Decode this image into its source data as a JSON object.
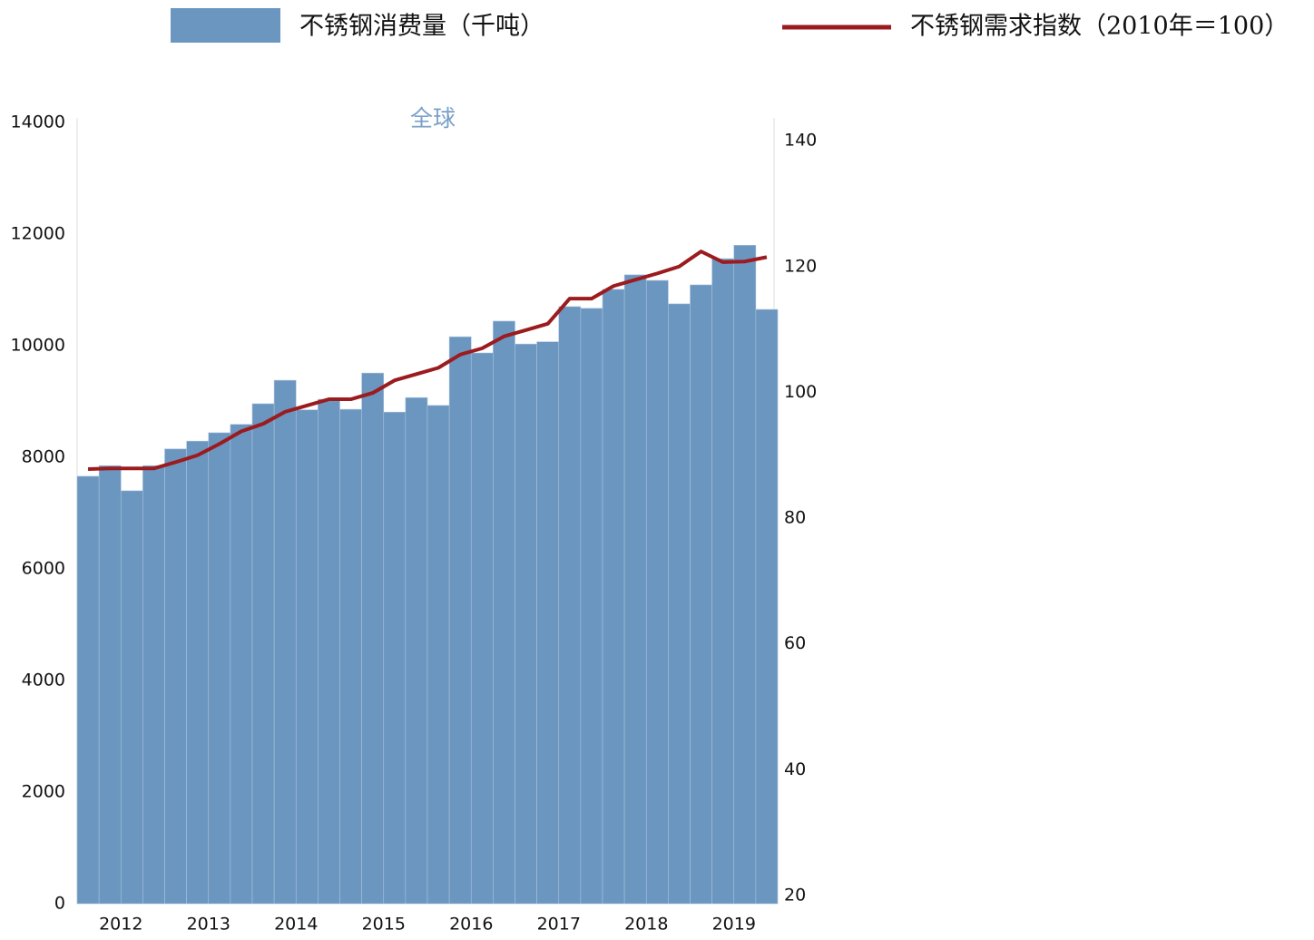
{
  "chart_data": {
    "type": "bar-line",
    "title": "全球",
    "categories": [
      null,
      null,
      "2012",
      null,
      null,
      null,
      "2013",
      null,
      null,
      null,
      "2014",
      null,
      null,
      null,
      "2015",
      null,
      null,
      null,
      "2016",
      null,
      null,
      null,
      "2017",
      null,
      null,
      null,
      "2018",
      null,
      null,
      null,
      "2019",
      null
    ],
    "series": [
      {
        "name": "不锈钢消费量（千吨）",
        "type": "bar",
        "color": "#6b96c0",
        "values": [
          7660,
          7850,
          7400,
          7850,
          8150,
          8290,
          8440,
          8590,
          8960,
          9380,
          8850,
          9040,
          8860,
          9510,
          8810,
          9070,
          8930,
          10160,
          9870,
          10440,
          10030,
          10070,
          10700,
          10670,
          11010,
          11270,
          11170,
          10750,
          11090,
          11560,
          11800,
          10650
        ]
      },
      {
        "name": "不锈钢需求指数（2010年＝100）",
        "type": "line",
        "axis": "y2",
        "color": "#9b1b1e",
        "values": [
          87.8,
          87.9,
          87.9,
          87.9,
          88.9,
          90.0,
          91.8,
          93.8,
          95.0,
          96.9,
          97.9,
          98.9,
          98.9,
          99.9,
          101.9,
          102.9,
          103.9,
          106.0,
          107.0,
          108.9,
          109.9,
          110.9,
          114.9,
          114.9,
          116.9,
          117.9,
          118.9,
          120.0,
          122.4,
          120.7,
          120.8,
          121.5
        ]
      }
    ],
    "ylim": [
      0,
      14000
    ],
    "yticks": [
      0,
      2000,
      4000,
      6000,
      8000,
      10000,
      12000,
      14000
    ],
    "y2lim": [
      18.7,
      142.9
    ],
    "y2ticks": [
      20,
      40,
      60,
      80,
      100,
      120,
      140
    ]
  }
}
